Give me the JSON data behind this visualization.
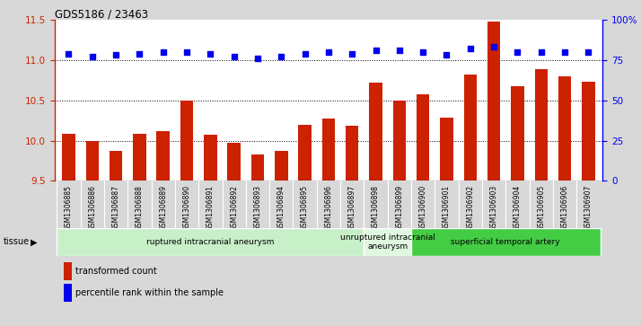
{
  "title": "GDS5186 / 23463",
  "samples": [
    "GSM1306885",
    "GSM1306886",
    "GSM1306887",
    "GSM1306888",
    "GSM1306889",
    "GSM1306890",
    "GSM1306891",
    "GSM1306892",
    "GSM1306893",
    "GSM1306894",
    "GSM1306895",
    "GSM1306896",
    "GSM1306897",
    "GSM1306898",
    "GSM1306899",
    "GSM1306900",
    "GSM1306901",
    "GSM1306902",
    "GSM1306903",
    "GSM1306904",
    "GSM1306905",
    "GSM1306906",
    "GSM1306907"
  ],
  "transformed_count": [
    10.08,
    10.0,
    9.87,
    10.08,
    10.12,
    10.5,
    10.07,
    9.97,
    9.83,
    9.87,
    10.2,
    10.27,
    10.18,
    10.72,
    10.5,
    10.57,
    10.28,
    10.82,
    11.48,
    10.67,
    10.88,
    10.8,
    10.73
  ],
  "percentile_rank": [
    79,
    77,
    78,
    79,
    80,
    80,
    79,
    77,
    76,
    77,
    79,
    80,
    79,
    81,
    81,
    80,
    78,
    82,
    83,
    80,
    80,
    80,
    80
  ],
  "groups": [
    {
      "label": "ruptured intracranial aneurysm",
      "start": 0,
      "end": 13,
      "color": "#c8f0c8"
    },
    {
      "label": "unruptured intracranial\naneurysm",
      "start": 13,
      "end": 15,
      "color": "#e0f8e0"
    },
    {
      "label": "superficial temporal artery",
      "start": 15,
      "end": 23,
      "color": "#44cc44"
    }
  ],
  "bar_color": "#cc2200",
  "dot_color": "#0000ee",
  "ylim_left": [
    9.5,
    11.5
  ],
  "ylim_right": [
    0,
    100
  ],
  "yticks_left": [
    9.5,
    10.0,
    10.5,
    11.0,
    11.5
  ],
  "yticks_right": [
    0,
    25,
    50,
    75,
    100
  ],
  "grid_values": [
    10.0,
    10.5,
    11.0
  ],
  "bg_color": "#d8d8d8",
  "plot_bg_color": "#ffffff",
  "tick_bg_color": "#d0d0d0",
  "tissue_label": "tissue",
  "legend_items": [
    {
      "label": "transformed count",
      "color": "#cc2200"
    },
    {
      "label": "percentile rank within the sample",
      "color": "#0000ee"
    }
  ]
}
